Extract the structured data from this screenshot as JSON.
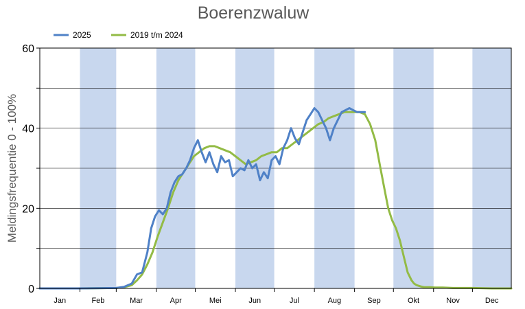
{
  "chart_data": {
    "type": "line",
    "title": "Boerenzwaluw",
    "xlabel": "",
    "ylabel": "Meldingsfrequentie 0 - 100%",
    "ylim": [
      0,
      60
    ],
    "yticks": [
      "0",
      "20",
      "40",
      "60"
    ],
    "categories": [
      "Jan",
      "Feb",
      "Mar",
      "Apr",
      "Mei",
      "Jun",
      "Jul",
      "Aug",
      "Sep",
      "Okt",
      "Nov",
      "Dec"
    ],
    "x_unit": "day of year (1-365)",
    "grid": true,
    "legend": "top-left",
    "colors": {
      "band": "#c8d7ee",
      "grid": "#000000",
      "series_2025": "#4f81c7",
      "series_hist": "#93bb45"
    },
    "series": [
      {
        "name": "2025",
        "color": "#4f81c7",
        "x": [
          1,
          30,
          60,
          66,
          72,
          76,
          80,
          84,
          87,
          90,
          93,
          96,
          99,
          102,
          105,
          108,
          111,
          114,
          117,
          120,
          123,
          126,
          129,
          132,
          135,
          138,
          141,
          144,
          147,
          150,
          153,
          156,
          159,
          162,
          165,
          168,
          171,
          174,
          177,
          180,
          183,
          186,
          189,
          192,
          195,
          198,
          201,
          204,
          207,
          210,
          213,
          216,
          219,
          222,
          225,
          228,
          231,
          234,
          237,
          240,
          243,
          246,
          249,
          252
        ],
        "values": [
          0,
          0,
          0.1,
          0.4,
          1.2,
          3.5,
          4,
          9,
          15,
          18,
          19.5,
          18.5,
          20,
          24,
          26.5,
          28,
          28.5,
          30,
          32,
          35,
          37,
          34,
          31.5,
          34,
          31,
          29,
          33,
          31.5,
          32,
          28,
          29,
          30,
          29.5,
          32,
          30,
          31,
          27,
          29,
          27.5,
          32,
          33,
          31,
          35,
          37,
          40,
          37.5,
          36,
          39,
          42,
          43.5,
          45,
          44,
          42,
          40,
          37,
          40,
          42,
          44,
          44.5,
          45,
          44.5,
          44,
          44,
          44
        ]
      },
      {
        "name": "2019 t/m 2024",
        "color": "#93bb45",
        "x": [
          1,
          30,
          60,
          66,
          72,
          76,
          80,
          84,
          88,
          92,
          96,
          100,
          104,
          108,
          112,
          116,
          120,
          124,
          128,
          132,
          136,
          140,
          144,
          148,
          152,
          156,
          160,
          164,
          168,
          172,
          176,
          180,
          184,
          188,
          192,
          196,
          200,
          204,
          208,
          212,
          216,
          220,
          224,
          228,
          232,
          236,
          240,
          244,
          248,
          252,
          256,
          260,
          264,
          267,
          270,
          273,
          276,
          279,
          282,
          285,
          288,
          290,
          292,
          295,
          298,
          302,
          306,
          312,
          320,
          335,
          350,
          365
        ],
        "values": [
          0,
          0,
          0.1,
          0.3,
          0.8,
          2,
          3.5,
          6,
          9,
          13,
          16.5,
          20,
          24,
          27,
          29,
          31,
          33,
          34,
          35,
          35.5,
          35.5,
          35,
          34.5,
          34,
          33,
          32,
          31,
          31.5,
          32,
          33,
          33.5,
          34,
          34,
          35,
          35,
          36,
          37,
          38,
          39,
          40,
          41,
          41.5,
          42.5,
          43,
          43.5,
          44,
          44,
          44,
          44,
          43.5,
          41,
          37,
          30,
          25,
          20,
          17,
          15,
          12,
          8,
          4,
          2,
          1.2,
          0.8,
          0.5,
          0.3,
          0.3,
          0.2,
          0.2,
          0.1,
          0.1,
          0,
          0
        ]
      }
    ]
  }
}
